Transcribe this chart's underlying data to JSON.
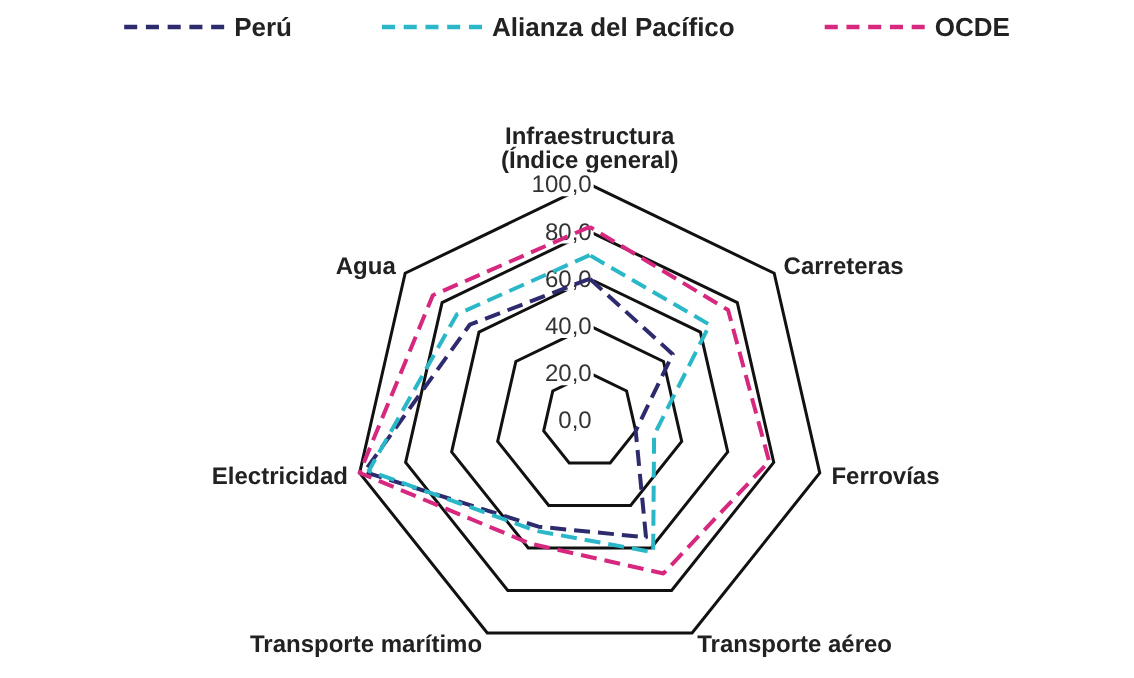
{
  "chart_data": {
    "type": "radar",
    "categories": [
      "Infraestructura\n(Índice general)",
      "Carreteras",
      "Ferrovías",
      "Transporte aéreo",
      "Transporte marítimo",
      "Electricidad",
      "Agua"
    ],
    "series": [
      {
        "name": "Perú",
        "color": "#2e2a6e",
        "values": [
          60,
          45,
          20,
          55,
          50,
          98,
          65
        ]
      },
      {
        "name": "Alianza del Pacífico",
        "color": "#2ab8c8",
        "values": [
          70,
          65,
          28,
          62,
          52,
          96,
          72
        ]
      },
      {
        "name": "OCDE",
        "color": "#d6287e",
        "values": [
          82,
          75,
          78,
          72,
          58,
          100,
          85
        ]
      }
    ],
    "ylim": [
      0,
      100
    ],
    "yticks": [
      {
        "value": 0,
        "label": "0,0"
      },
      {
        "value": 20,
        "label": "20,0"
      },
      {
        "value": 40,
        "label": "40,0"
      },
      {
        "value": 60,
        "label": "60,0"
      },
      {
        "value": 80,
        "label": "80,0"
      },
      {
        "value": 100,
        "label": "100,0"
      }
    ],
    "grid": true,
    "legend": "top",
    "marker": "none",
    "line_style": "dashed"
  }
}
